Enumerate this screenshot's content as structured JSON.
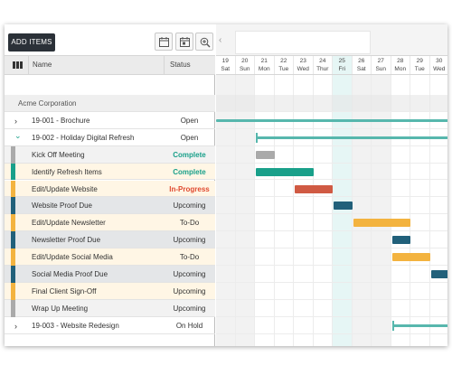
{
  "toolbar": {
    "add_label": "ADD ITEMS"
  },
  "grid_header": {
    "name": "Name",
    "status": "Status"
  },
  "colors": {
    "teal": "#19a08a",
    "red": "#d05a43",
    "orange": "#f3b33f",
    "navy": "#21607a",
    "gray": "#aaaaaa",
    "today": "#e6f6f5",
    "weekend": "#f2f2f2",
    "complete_text": "#19a08a",
    "progress_text": "#e0492f"
  },
  "rows": [
    {
      "name": "Acme Corporation",
      "status": "",
      "kind": "company"
    },
    {
      "name": "19-001 - Brochure",
      "status": "Open",
      "kind": "project",
      "arrow": "›"
    },
    {
      "name": "19-002 - Holiday Digital Refresh",
      "status": "Open",
      "kind": "project",
      "arrow": "⌄"
    },
    {
      "name": "Kick Off Meeting",
      "status": "Complete",
      "kind": "task",
      "stripe": "#aaaaaa",
      "bg": "#f2f2f2",
      "status_color": "#19a08a"
    },
    {
      "name": "Identify Refresh Items",
      "status": "Complete",
      "kind": "task",
      "stripe": "#19a08a",
      "bg": "#fff6e5",
      "status_color": "#19a08a"
    },
    {
      "name": "Edit/Update Website",
      "status": "In-Progress",
      "kind": "task",
      "stripe": "#f3b33f",
      "bg": "#fff6e5",
      "status_color": "#e0492f"
    },
    {
      "name": "Website Proof Due",
      "status": "Upcoming",
      "kind": "task",
      "stripe": "#21607a",
      "bg": "#e4e6e8",
      "status_color": "#333333"
    },
    {
      "name": "Edit/Update Newsletter",
      "status": "To-Do",
      "kind": "task",
      "stripe": "#f3b33f",
      "bg": "#fff6e5",
      "status_color": "#333333"
    },
    {
      "name": "Newsletter Proof Due",
      "status": "Upcoming",
      "kind": "task",
      "stripe": "#21607a",
      "bg": "#e4e6e8",
      "status_color": "#333333"
    },
    {
      "name": "Edit/Update Social Media",
      "status": "To-Do",
      "kind": "task",
      "stripe": "#f3b33f",
      "bg": "#fff6e5",
      "status_color": "#333333"
    },
    {
      "name": "Social Media Proof Due",
      "status": "Upcoming",
      "kind": "task",
      "stripe": "#21607a",
      "bg": "#e4e6e8",
      "status_color": "#333333"
    },
    {
      "name": "Final Client Sign-Off",
      "status": "Upcoming",
      "kind": "task",
      "stripe": "#f3b33f",
      "bg": "#fff6e5",
      "status_color": "#333333"
    },
    {
      "name": "Wrap Up Meeting",
      "status": "Upcoming",
      "kind": "task",
      "stripe": "#aaaaaa",
      "bg": "#f2f2f2",
      "status_color": "#333333"
    },
    {
      "name": "19-003 - Website Redesign",
      "status": "On Hold",
      "kind": "project",
      "arrow": "›"
    }
  ],
  "days": [
    {
      "num": "19",
      "dow": "Sat",
      "weekend": true
    },
    {
      "num": "20",
      "dow": "Sun",
      "weekend": true
    },
    {
      "num": "21",
      "dow": "Mon"
    },
    {
      "num": "22",
      "dow": "Tue"
    },
    {
      "num": "23",
      "dow": "Wed"
    },
    {
      "num": "24",
      "dow": "Thur"
    },
    {
      "num": "25",
      "dow": "Fri",
      "today": true
    },
    {
      "num": "26",
      "dow": "Sat",
      "weekend": true
    },
    {
      "num": "27",
      "dow": "Sun",
      "weekend": true
    },
    {
      "num": "28",
      "dow": "Mon"
    },
    {
      "num": "29",
      "dow": "Tue"
    },
    {
      "num": "30",
      "dow": "Wed"
    }
  ],
  "bars": [
    {
      "row": 1,
      "type": "summary",
      "start": 0,
      "end": 12
    },
    {
      "row": 2,
      "type": "summary",
      "start": 2,
      "end": 12,
      "start_marker": true
    },
    {
      "row": 3,
      "start": 2,
      "end": 3,
      "color": "#aaaaaa"
    },
    {
      "row": 4,
      "start": 2,
      "end": 5,
      "color": "#19a08a"
    },
    {
      "row": 5,
      "start": 4,
      "end": 6,
      "color": "#d05a43"
    },
    {
      "row": 6,
      "start": 6,
      "end": 7,
      "color": "#21607a"
    },
    {
      "row": 7,
      "start": 7,
      "end": 10,
      "color": "#f3b33f"
    },
    {
      "row": 8,
      "start": 9,
      "end": 10,
      "color": "#21607a"
    },
    {
      "row": 9,
      "start": 9,
      "end": 11,
      "color": "#f3b33f"
    },
    {
      "row": 10,
      "start": 11,
      "end": 12,
      "color": "#21607a"
    },
    {
      "row": 13,
      "type": "summary",
      "start": 9,
      "end": 12,
      "start_marker": true
    }
  ]
}
